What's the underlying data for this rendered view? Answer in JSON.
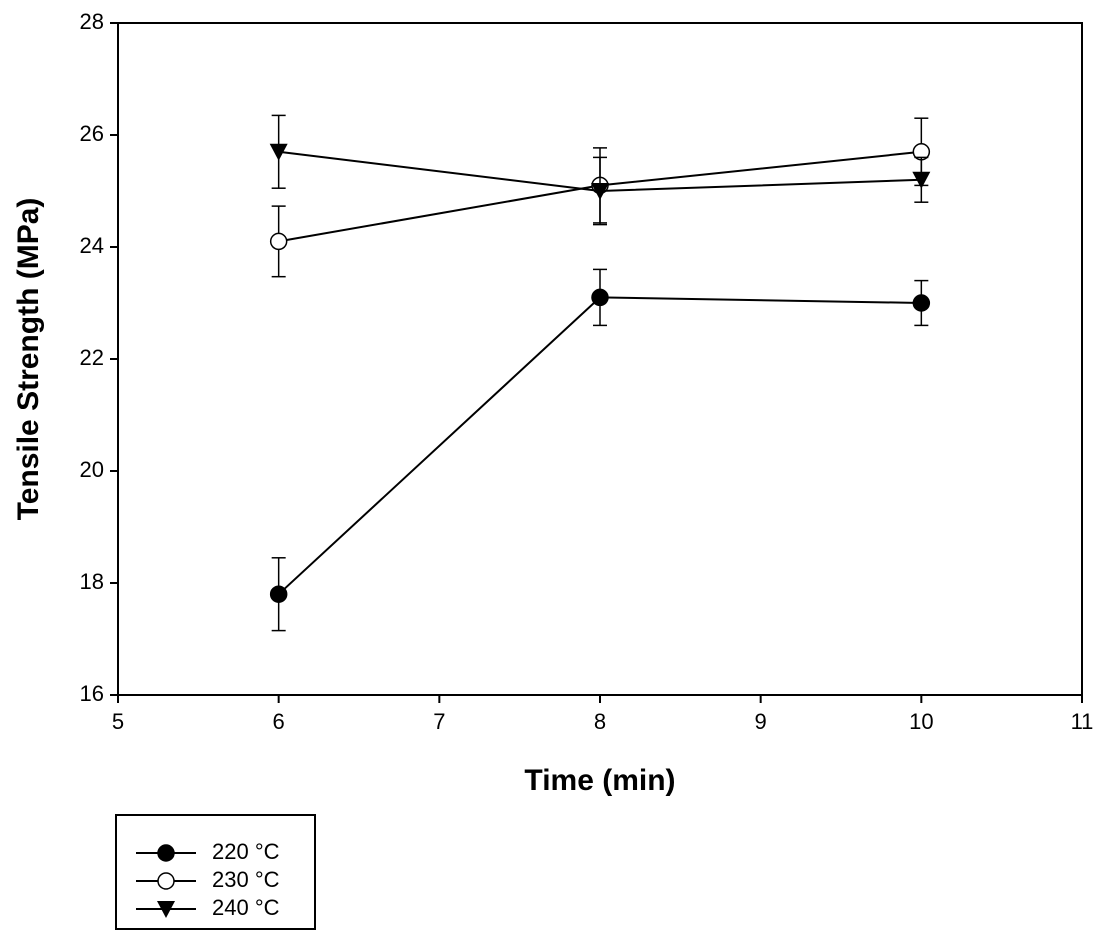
{
  "chart_data": {
    "type": "line",
    "x_label": "Time (min)",
    "y_label": "Tensile Strength (MPa)",
    "x": [
      6,
      8,
      10
    ],
    "series": [
      {
        "name": "220 °C",
        "color": "#000000",
        "marker": "filled-circle",
        "values": [
          17.8,
          23.1,
          23.0
        ],
        "errors": [
          0.65,
          0.5,
          0.4
        ]
      },
      {
        "name": "230 °C",
        "color": "#000000",
        "marker": "open-circle",
        "values": [
          24.1,
          25.1,
          25.7
        ],
        "errors": [
          0.63,
          0.67,
          0.6
        ]
      },
      {
        "name": "240 °C",
        "color": "#000000",
        "marker": "triangle-down",
        "values": [
          25.7,
          25.0,
          25.2
        ],
        "errors": [
          0.65,
          0.6,
          0.4
        ]
      }
    ],
    "xlim": [
      5,
      11
    ],
    "xticks": [
      5,
      6,
      7,
      8,
      9,
      10,
      11
    ],
    "ylim": [
      16,
      28
    ],
    "yticks": [
      16,
      18,
      20,
      22,
      24,
      26,
      28
    ],
    "grid": false,
    "legend": "below-left"
  }
}
